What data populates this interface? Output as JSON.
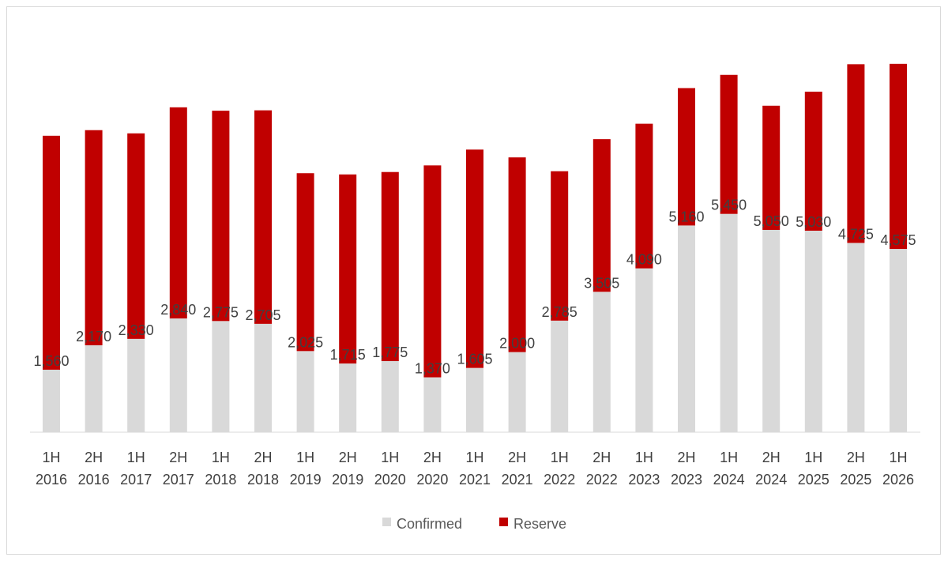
{
  "chart_data": {
    "type": "bar",
    "stacked": true,
    "title": "",
    "xlabel": "",
    "ylabel": "",
    "categories": [
      "1H 2016",
      "2H 2016",
      "1H 2017",
      "2H 2017",
      "1H 2018",
      "2H 2018",
      "1H 2019",
      "2H 2019",
      "1H 2020",
      "2H 2020",
      "1H 2021",
      "2H 2021",
      "1H 2022",
      "2H 2022",
      "1H 2023",
      "2H 2023",
      "1H 2024",
      "2H 2024",
      "1H 2025",
      "2H 2025",
      "1H 2026"
    ],
    "series": [
      {
        "name": "Confirmed",
        "color": "#d9d9d9",
        "values": [
          1560,
          2170,
          2330,
          2840,
          2775,
          2705,
          2025,
          1715,
          1775,
          1370,
          1605,
          2000,
          2785,
          3505,
          4090,
          5160,
          5450,
          5050,
          5030,
          4725,
          4575
        ],
        "labels": [
          "1,560",
          "2,170",
          "2,330",
          "2,840",
          "2,775",
          "2,705",
          "2,025",
          "1,715",
          "1,775",
          "1,370",
          "1,605",
          "2,000",
          "2,785",
          "3,505",
          "4,090",
          "5,160",
          "5,450",
          "5,050",
          "5,030",
          "4,725",
          "4,575"
        ]
      },
      {
        "name": "Reserve",
        "color": "#c00000",
        "values": [
          5840,
          5370,
          5130,
          5270,
          5250,
          5330,
          4440,
          4720,
          4720,
          5290,
          5450,
          4860,
          3730,
          3810,
          3610,
          3430,
          3470,
          3100,
          3470,
          4460,
          4620
        ]
      }
    ],
    "ylim": [
      0,
      10800
    ],
    "grid": false,
    "legend": "bottom"
  }
}
